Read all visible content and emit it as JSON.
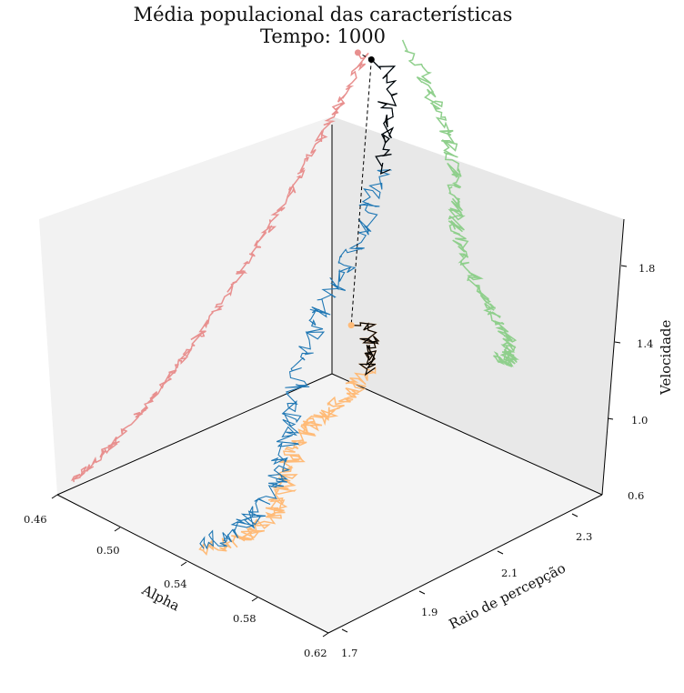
{
  "chart_data": {
    "type": "line3d",
    "title": "Média populacional das características",
    "subtitle": "Tempo: 1000",
    "xlabel": "Alpha",
    "ylabel": "Raio de percepção",
    "zlabel": "Velocidade",
    "xlim": [
      0.46,
      0.62
    ],
    "ylim": [
      1.7,
      2.4
    ],
    "zlim": [
      0.6,
      2.0
    ],
    "xticks": [
      "0.46",
      "0.50",
      "0.54",
      "0.58",
      "0.62"
    ],
    "yticks": [
      "1.7",
      "1.9",
      "2.1",
      "2.3"
    ],
    "zticks": [
      "0.6",
      "1.0",
      "1.4",
      "1.8"
    ],
    "current": {
      "alpha": 0.468,
      "raio": 2.33,
      "velocidade": 1.95
    },
    "series": [
      {
        "role": "trajectory",
        "color": "#1f77b4"
      },
      {
        "role": "projection-xy",
        "color": "#ffbb78"
      },
      {
        "role": "projection-xz",
        "color": "#e8908f"
      },
      {
        "role": "projection-yz",
        "color": "#8fcf8c"
      },
      {
        "role": "recent-trail",
        "color": "#000000"
      }
    ]
  }
}
